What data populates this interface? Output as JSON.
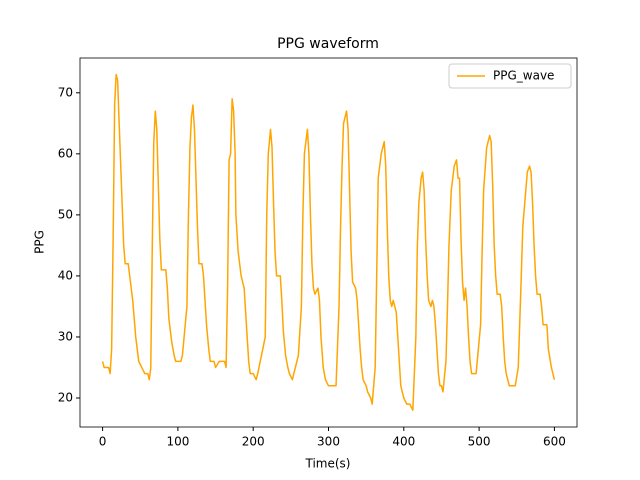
{
  "chart_data": {
    "type": "line",
    "title": "PPG waveform",
    "x_label": "Time(s)",
    "y_label": "PPG",
    "x": [
      0,
      2,
      8,
      10,
      12,
      14,
      16,
      18,
      20,
      22,
      25,
      28,
      30,
      34,
      36,
      40,
      44,
      48,
      52,
      56,
      60,
      62,
      64,
      66,
      68,
      70,
      72,
      74,
      76,
      78,
      84,
      86,
      88,
      92,
      95,
      97,
      104,
      106,
      112,
      114,
      116,
      118,
      120,
      122,
      124,
      126,
      128,
      132,
      134,
      136,
      138,
      141,
      143,
      148,
      150,
      155,
      162,
      164,
      166,
      168,
      170,
      172,
      174,
      176,
      177,
      180,
      182,
      184,
      188,
      190,
      192,
      194,
      196,
      200,
      204,
      206,
      216,
      218,
      220,
      223,
      225,
      227,
      229,
      231,
      236,
      238,
      240,
      243,
      246,
      248,
      252,
      254,
      260,
      264,
      266,
      268,
      272,
      274,
      276,
      278,
      280,
      282,
      286,
      288,
      290,
      293,
      296,
      300,
      306,
      310,
      314,
      316,
      318,
      320,
      324,
      326,
      328,
      330,
      332,
      336,
      338,
      340,
      342,
      344,
      346,
      350,
      352,
      356,
      358,
      362,
      364,
      366,
      368,
      370,
      374,
      376,
      378,
      380,
      382,
      384,
      386,
      390,
      392,
      394,
      396,
      400,
      404,
      408,
      412,
      416,
      418,
      420,
      423,
      425,
      427,
      429,
      431,
      433,
      436,
      438,
      440,
      442,
      444,
      446,
      448,
      450,
      452,
      456,
      458,
      460,
      463,
      467,
      470,
      472,
      474,
      476,
      478,
      480,
      482,
      484,
      486,
      488,
      490,
      494,
      496,
      502,
      504,
      506,
      510,
      514,
      516,
      518,
      520,
      522,
      524,
      528,
      530,
      532,
      534,
      536,
      538,
      540,
      542,
      548,
      552,
      556,
      558,
      562,
      564,
      567,
      569,
      571,
      573,
      575,
      577,
      581,
      583,
      585,
      590,
      592,
      596,
      600
    ],
    "series": [
      {
        "name": "PPG_wave",
        "color": "#ffa500",
        "values": [
          26,
          25,
          25,
          24,
          28,
          46,
          68,
          73,
          72,
          65,
          55,
          45,
          42,
          42,
          40,
          36,
          30,
          26,
          25,
          24,
          24,
          23,
          25,
          45,
          62,
          67,
          64,
          55,
          46,
          41,
          41,
          38,
          33,
          29,
          27,
          26,
          26,
          27,
          35,
          50,
          61,
          66,
          68,
          64,
          56,
          48,
          42,
          42,
          40,
          36,
          32,
          28,
          26,
          26,
          25,
          26,
          26,
          25,
          38,
          59,
          60,
          69,
          67,
          60,
          50,
          44,
          42,
          40,
          38,
          34,
          30,
          26,
          24,
          24,
          23,
          24,
          30,
          50,
          60,
          64,
          61,
          52,
          44,
          40,
          40,
          36,
          31,
          27,
          25,
          24,
          23,
          24,
          27,
          35,
          50,
          60,
          64,
          60,
          50,
          42,
          38,
          37,
          38,
          36,
          30,
          25,
          23,
          22,
          22,
          22,
          35,
          48,
          58,
          65,
          67,
          64,
          54,
          44,
          39,
          38,
          36,
          32,
          28,
          25,
          23,
          22,
          21,
          20,
          19,
          25,
          40,
          56,
          58,
          60,
          62,
          58,
          48,
          40,
          36,
          35,
          36,
          34,
          30,
          26,
          22,
          20,
          19,
          19,
          18,
          30,
          45,
          52,
          56,
          57,
          54,
          46,
          40,
          36,
          35,
          36,
          35,
          32,
          28,
          24,
          22,
          22,
          21,
          26,
          35,
          45,
          54,
          58,
          59,
          56,
          56,
          46,
          39,
          36,
          38,
          35,
          30,
          26,
          24,
          24,
          24,
          32,
          44,
          54,
          61,
          63,
          62,
          55,
          45,
          40,
          37,
          37,
          35,
          30,
          26,
          24,
          23,
          22,
          22,
          22,
          25,
          40,
          48,
          54,
          57,
          58,
          57,
          52,
          45,
          40,
          37,
          37,
          35,
          32,
          32,
          28,
          25,
          23
        ]
      }
    ],
    "xlim": [
      -30,
      630
    ],
    "ylim": [
      15.25,
      75.7
    ],
    "xticks": [
      0,
      100,
      200,
      300,
      400,
      500,
      600
    ],
    "yticks": [
      20,
      30,
      40,
      50,
      60,
      70
    ],
    "legend": "upper right"
  }
}
